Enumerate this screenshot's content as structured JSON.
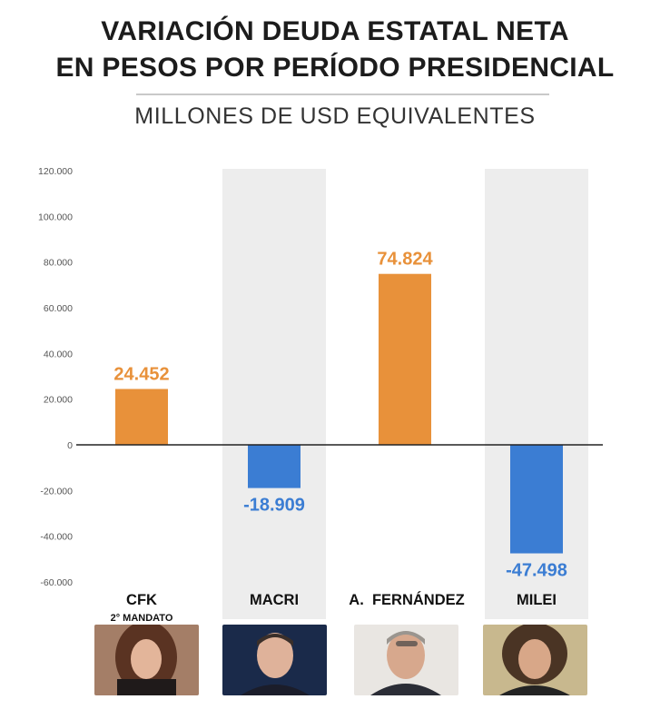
{
  "header": {
    "title_line1": "VARIACIÓN DEUDA ESTATAL NETA",
    "title_line2": "EN PESOS POR PERÍODO PRESIDENCIAL",
    "subtitle": "MILLONES DE USD EQUIVALENTES"
  },
  "colors": {
    "positive": "#E8913A",
    "negative": "#3B7DD3",
    "band": "#EDEDED",
    "axis": "#222222"
  },
  "chart_data": {
    "type": "bar",
    "title": "VARIACIÓN DEUDA ESTATAL NETA EN PESOS POR PERÍODO PRESIDENCIAL",
    "subtitle": "MILLONES DE USD EQUIVALENTES",
    "categories": [
      "CFK",
      "MACRI",
      "A.  FERNÁNDEZ",
      "MILEI"
    ],
    "category_sublabels": [
      "2° MANDATO",
      "",
      "",
      ""
    ],
    "values": [
      24452,
      -18909,
      74824,
      -47498
    ],
    "value_labels": [
      "24.452",
      "-18.909",
      "74.824",
      "-47.498"
    ],
    "ylim": [
      -60000,
      120000
    ],
    "yticks": [
      -60000,
      -40000,
      -20000,
      0,
      20000,
      40000,
      60000,
      80000,
      100000,
      120000
    ],
    "ytick_labels": [
      "-60.000",
      "-40.000",
      "-20.000",
      "0",
      "20.000",
      "40.000",
      "60.000",
      "80.000",
      "100.000",
      "120.000"
    ],
    "shaded_categories": [
      "MACRI",
      "MILEI"
    ],
    "grid": false,
    "photos": [
      "cfk-portrait",
      "macri-portrait",
      "fernandez-portrait",
      "milei-portrait"
    ]
  }
}
